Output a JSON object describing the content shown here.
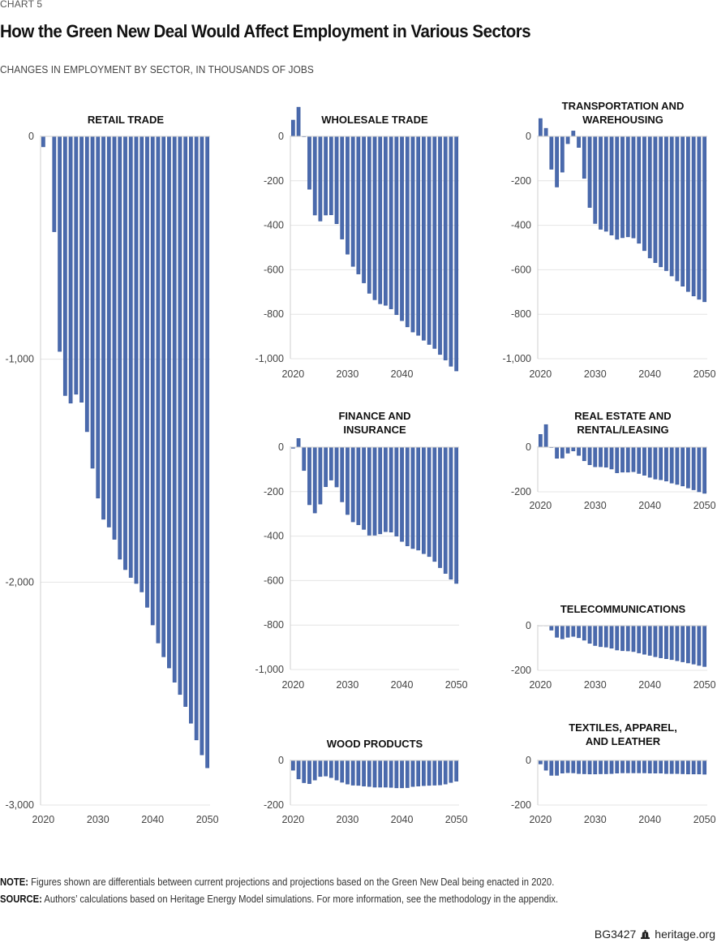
{
  "header": {
    "chart_label": "CHART 5",
    "title": "How the Green New Deal Would Affect Employment in Various Sectors",
    "subtitle": "CHANGES IN EMPLOYMENT BY SECTOR, IN THOUSANDS OF JOBS"
  },
  "footer": {
    "note_label": "NOTE:",
    "note_text": " Figures shown are differentials between current projections and projections based on the Green New Deal being enacted in 2020.",
    "source_label": "SOURCE:",
    "source_text": " Authors’ calculations based on Heritage Energy Model simulations. For more information, see the methodology in the appendix.",
    "report_id": "BG3427",
    "logo_icon": "liberty-bell-icon",
    "site": "heritage.org"
  },
  "colors": {
    "bar": "#4a6aad",
    "grid": "#e4e4e4"
  },
  "chart_data": [
    {
      "type": "bar",
      "id": "retail",
      "title": [
        "RETAIL TRADE"
      ],
      "x": [
        2020,
        2021,
        2022,
        2023,
        2024,
        2025,
        2026,
        2027,
        2028,
        2029,
        2030,
        2031,
        2032,
        2033,
        2034,
        2035,
        2036,
        2037,
        2038,
        2039,
        2040,
        2041,
        2042,
        2043,
        2044,
        2045,
        2046,
        2047,
        2048,
        2049,
        2050
      ],
      "values": [
        -47,
        0,
        -428,
        -965,
        -1163,
        -1197,
        -1157,
        -1193,
        -1325,
        -1489,
        -1623,
        -1718,
        -1753,
        -1808,
        -1897,
        -1944,
        -1979,
        -2006,
        -2044,
        -2113,
        -2192,
        -2273,
        -2335,
        -2385,
        -2449,
        -2504,
        -2558,
        -2633,
        -2708,
        -2775,
        -2833
      ],
      "ylim": [
        -3000,
        0
      ],
      "yticks": [
        0,
        -1000,
        -2000,
        -3000
      ],
      "ytick_labels": [
        "0",
        "-1,000",
        "-2,000",
        "-3,000"
      ],
      "xtick_labels": [
        "2020",
        "2030",
        "2040",
        "2050"
      ],
      "grid": true
    },
    {
      "type": "bar",
      "id": "wholesale",
      "title": [
        "WHOLESALE TRADE"
      ],
      "x": [
        2020,
        2021,
        2022,
        2023,
        2024,
        2025,
        2026,
        2027,
        2028,
        2029,
        2030,
        2031,
        2032,
        2033,
        2034,
        2035,
        2036,
        2037,
        2038,
        2039,
        2040,
        2041,
        2042,
        2043,
        2044,
        2045,
        2046,
        2047,
        2048,
        2049,
        2050
      ],
      "values": [
        73,
        131,
        -2,
        -238,
        -354,
        -381,
        -354,
        -353,
        -393,
        -462,
        -530,
        -585,
        -619,
        -659,
        -706,
        -735,
        -753,
        -760,
        -776,
        -802,
        -829,
        -857,
        -880,
        -895,
        -917,
        -936,
        -954,
        -981,
        -1006,
        -1034,
        -1055
      ],
      "ylim": [
        -1000,
        0
      ],
      "yticks": [
        0,
        -200,
        -400,
        -600,
        -800,
        -1000
      ],
      "ytick_labels": [
        "0",
        "-200",
        "-400",
        "-600",
        "-800",
        "-1,000"
      ],
      "xtick_labels": [
        "2020",
        "2030",
        "2040"
      ],
      "grid": true
    },
    {
      "type": "bar",
      "id": "transportation",
      "title": [
        "TRANSPORTATION AND",
        "WAREHOUSING"
      ],
      "x": [
        2020,
        2021,
        2022,
        2023,
        2024,
        2025,
        2026,
        2027,
        2028,
        2029,
        2030,
        2031,
        2032,
        2033,
        2034,
        2035,
        2036,
        2037,
        2038,
        2039,
        2040,
        2041,
        2042,
        2043,
        2044,
        2045,
        2046,
        2047,
        2048,
        2049,
        2050
      ],
      "values": [
        80,
        36,
        -148,
        -228,
        -161,
        -33,
        24,
        -50,
        -189,
        -320,
        -392,
        -418,
        -427,
        -444,
        -463,
        -456,
        -452,
        -457,
        -481,
        -514,
        -547,
        -568,
        -587,
        -604,
        -628,
        -650,
        -674,
        -698,
        -718,
        -733,
        -744
      ],
      "ylim": [
        -1000,
        0
      ],
      "yticks": [
        0,
        -200,
        -400,
        -600,
        -800,
        -1000
      ],
      "ytick_labels": [
        "0",
        "-200",
        "-400",
        "-600",
        "-800",
        "-1,000"
      ],
      "xtick_labels": [
        "2020",
        "2030",
        "2040",
        "2050"
      ],
      "grid": true
    },
    {
      "type": "bar",
      "id": "finance",
      "title": [
        "FINANCE AND",
        "INSURANCE"
      ],
      "x": [
        2020,
        2021,
        2022,
        2023,
        2024,
        2025,
        2026,
        2027,
        2028,
        2029,
        2030,
        2031,
        2032,
        2033,
        2034,
        2035,
        2036,
        2037,
        2038,
        2039,
        2040,
        2041,
        2042,
        2043,
        2044,
        2045,
        2046,
        2047,
        2048,
        2049,
        2050
      ],
      "values": [
        -5,
        39,
        -105,
        -259,
        -296,
        -256,
        -178,
        -148,
        -179,
        -246,
        -303,
        -336,
        -349,
        -370,
        -396,
        -396,
        -390,
        -380,
        -382,
        -400,
        -424,
        -444,
        -456,
        -463,
        -479,
        -492,
        -514,
        -542,
        -568,
        -594,
        -613
      ],
      "ylim": [
        -1000,
        0
      ],
      "yticks": [
        0,
        -200,
        -400,
        -600,
        -800,
        -1000
      ],
      "ytick_labels": [
        "0",
        "-200",
        "-400",
        "-600",
        "-800",
        "-1,000"
      ],
      "xtick_labels": [
        "2020",
        "2030",
        "2040",
        "2050"
      ],
      "grid": true
    },
    {
      "type": "bar",
      "id": "real-estate",
      "title": [
        "REAL ESTATE AND",
        "RENTAL/LEASING"
      ],
      "x": [
        2020,
        2021,
        2022,
        2023,
        2024,
        2025,
        2026,
        2027,
        2028,
        2029,
        2030,
        2031,
        2032,
        2033,
        2034,
        2035,
        2036,
        2037,
        2038,
        2039,
        2040,
        2041,
        2042,
        2043,
        2044,
        2045,
        2046,
        2047,
        2048,
        2049,
        2050
      ],
      "values": [
        57,
        101,
        -2,
        -50,
        -49,
        -27,
        -17,
        -37,
        -61,
        -79,
        -88,
        -88,
        -90,
        -98,
        -115,
        -112,
        -112,
        -110,
        -118,
        -126,
        -135,
        -143,
        -146,
        -152,
        -161,
        -167,
        -174,
        -183,
        -191,
        -200,
        -207
      ],
      "ylim": [
        -200,
        0
      ],
      "yticks": [
        0,
        -200
      ],
      "ytick_labels": [
        "0",
        "-200"
      ],
      "xtick_labels": [
        "2020",
        "2030",
        "2040",
        "2050"
      ],
      "grid": true
    },
    {
      "type": "bar",
      "id": "telecom",
      "title": [
        "TELECOMMUNICATIONS"
      ],
      "x": [
        2020,
        2021,
        2022,
        2023,
        2024,
        2025,
        2026,
        2027,
        2028,
        2029,
        2030,
        2031,
        2032,
        2033,
        2034,
        2035,
        2036,
        2037,
        2038,
        2039,
        2040,
        2041,
        2042,
        2043,
        2044,
        2045,
        2046,
        2047,
        2048,
        2049,
        2050
      ],
      "values": [
        -1,
        -1,
        -20,
        -52,
        -59,
        -52,
        -48,
        -54,
        -65,
        -79,
        -89,
        -94,
        -96,
        -101,
        -109,
        -112,
        -113,
        -116,
        -122,
        -128,
        -133,
        -139,
        -144,
        -148,
        -152,
        -157,
        -162,
        -167,
        -172,
        -178,
        -183
      ],
      "ylim": [
        -200,
        0
      ],
      "yticks": [
        0,
        -200
      ],
      "ytick_labels": [
        "0",
        "-200"
      ],
      "xtick_labels": [
        "2020",
        "2030",
        "2040",
        "2050"
      ],
      "grid": true
    },
    {
      "type": "bar",
      "id": "wood",
      "title": [
        "WOOD PRODUCTS"
      ],
      "x": [
        2020,
        2021,
        2022,
        2023,
        2024,
        2025,
        2026,
        2027,
        2028,
        2029,
        2030,
        2031,
        2032,
        2033,
        2034,
        2035,
        2036,
        2037,
        2038,
        2039,
        2040,
        2041,
        2042,
        2043,
        2044,
        2045,
        2046,
        2047,
        2048,
        2049,
        2050
      ],
      "values": [
        -44,
        -83,
        -100,
        -104,
        -88,
        -72,
        -70,
        -77,
        -88,
        -98,
        -106,
        -111,
        -112,
        -115,
        -117,
        -120,
        -120,
        -120,
        -121,
        -123,
        -123,
        -122,
        -117,
        -115,
        -113,
        -112,
        -111,
        -110,
        -106,
        -99,
        -93
      ],
      "ylim": [
        -200,
        0
      ],
      "yticks": [
        0,
        -200
      ],
      "ytick_labels": [
        "0",
        "-200"
      ],
      "xtick_labels": [
        "2020",
        "2030",
        "2040",
        "2050"
      ],
      "grid": true
    },
    {
      "type": "bar",
      "id": "textiles",
      "title": [
        "TEXTILES, APPAREL,",
        "AND LEATHER"
      ],
      "x": [
        2020,
        2021,
        2022,
        2023,
        2024,
        2025,
        2026,
        2027,
        2028,
        2029,
        2030,
        2031,
        2032,
        2033,
        2034,
        2035,
        2036,
        2037,
        2038,
        2039,
        2040,
        2041,
        2042,
        2043,
        2044,
        2045,
        2046,
        2047,
        2048,
        2049,
        2050
      ],
      "values": [
        -16,
        -44,
        -67,
        -67,
        -57,
        -55,
        -56,
        -59,
        -60,
        -61,
        -61,
        -60,
        -60,
        -59,
        -57,
        -56,
        -56,
        -56,
        -56,
        -56,
        -57,
        -57,
        -57,
        -59,
        -59,
        -59,
        -60,
        -61,
        -61,
        -61,
        -62
      ],
      "ylim": [
        -200,
        0
      ],
      "yticks": [
        0,
        -200
      ],
      "ytick_labels": [
        "0",
        "-200"
      ],
      "xtick_labels": [
        "2020",
        "2030",
        "2040",
        "2050"
      ],
      "grid": true
    }
  ]
}
